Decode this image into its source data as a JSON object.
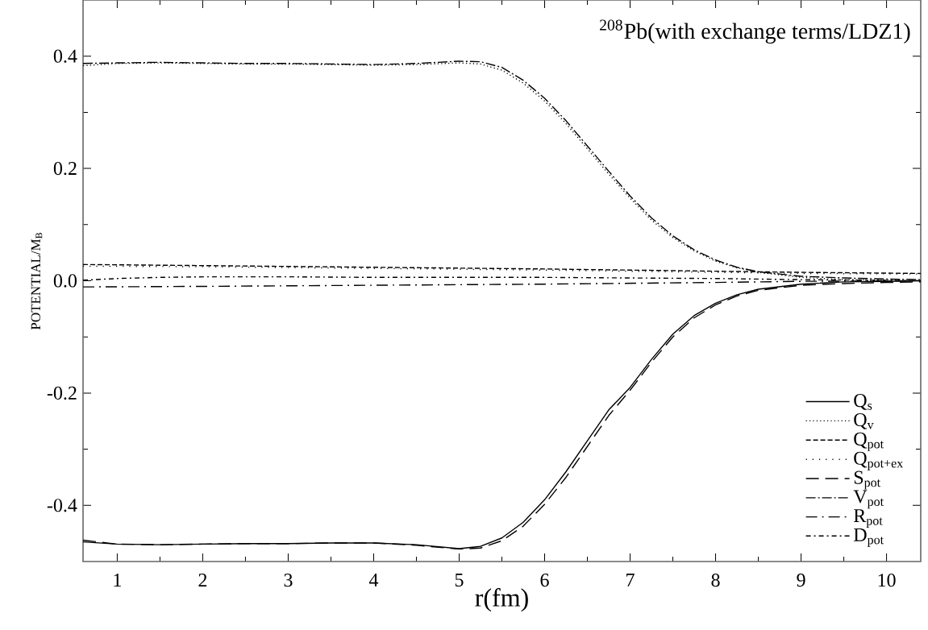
{
  "chart_data": {
    "type": "line",
    "xlabel": "r(fm)",
    "ylabel": "POTENTIAL/M$_{B}$",
    "annotations": [
      "$^{208}$Pb(with exchange terms/LDZ1)"
    ],
    "xlim": [
      0.6,
      10.4
    ],
    "ylim": [
      -0.5,
      0.5
    ],
    "xticks": [
      1,
      2,
      3,
      4,
      5,
      6,
      7,
      8,
      9,
      10
    ],
    "yticks": [
      -0.4,
      -0.2,
      {
        "value": 0,
        "label": "0.0"
      },
      0.2,
      0.4
    ],
    "grid": false,
    "legend": "bottom right",
    "marker": "none",
    "x": [
      0.6,
      1,
      1.5,
      2,
      2.5,
      3,
      3.5,
      4,
      4.5,
      5,
      5.25,
      5.5,
      5.75,
      6,
      6.25,
      6.5,
      6.75,
      7,
      7.25,
      7.5,
      7.75,
      8,
      8.25,
      8.5,
      9,
      9.5,
      10,
      10.4
    ],
    "series": [
      {
        "name": "Q$_{s}$",
        "color": "#000000",
        "line_style": "solid",
        "values": [
          -0.465,
          -0.469,
          -0.47,
          -0.469,
          -0.468,
          -0.468,
          -0.467,
          -0.467,
          -0.47,
          -0.477,
          -0.473,
          -0.458,
          -0.43,
          -0.39,
          -0.34,
          -0.285,
          -0.23,
          -0.19,
          -0.14,
          -0.095,
          -0.062,
          -0.04,
          -0.025,
          -0.015,
          -0.006,
          -0.002,
          -0.001,
          0.0
        ]
      },
      {
        "name": "Q$_{v}$",
        "color": "#000000",
        "line_style": "dotted",
        "values": [
          0.383,
          0.387,
          0.388,
          0.387,
          0.386,
          0.386,
          0.385,
          0.384,
          0.385,
          0.388,
          0.386,
          0.375,
          0.352,
          0.32,
          0.28,
          0.235,
          0.19,
          0.147,
          0.108,
          0.077,
          0.053,
          0.035,
          0.023,
          0.015,
          0.006,
          0.002,
          0.001,
          0.0
        ]
      },
      {
        "name": "Q$_{pot}$",
        "color": "#000000",
        "line_style": "dashed",
        "x": [
          0.6,
          2,
          4,
          6,
          8,
          9,
          10.4
        ],
        "values": [
          0.029,
          0.027,
          0.024,
          0.021,
          0.017,
          0.015,
          0.013
        ]
      },
      {
        "name": "Q$_{pot+ex}$",
        "color": "#000000",
        "line_style": "loosely dotted",
        "x": [
          0.6,
          2,
          4,
          6,
          8,
          9,
          10.4
        ],
        "values": [
          0.026,
          0.025,
          0.022,
          0.019,
          0.015,
          0.013,
          0.012
        ]
      },
      {
        "name": "S$_{pot}$",
        "color": "#000000",
        "line_style": "long dashed",
        "values": [
          -0.462,
          -0.469,
          -0.47,
          -0.469,
          -0.468,
          -0.468,
          -0.467,
          -0.467,
          -0.471,
          -0.478,
          -0.476,
          -0.463,
          -0.437,
          -0.398,
          -0.35,
          -0.295,
          -0.24,
          -0.195,
          -0.145,
          -0.1,
          -0.066,
          -0.043,
          -0.027,
          -0.017,
          -0.008,
          -0.005,
          -0.003,
          -0.002
        ]
      },
      {
        "name": "V$_{pot}$",
        "color": "#000000",
        "line_style": "dash dot",
        "values": [
          0.387,
          0.388,
          0.389,
          0.388,
          0.387,
          0.387,
          0.386,
          0.385,
          0.387,
          0.391,
          0.39,
          0.38,
          0.357,
          0.325,
          0.285,
          0.24,
          0.195,
          0.151,
          0.112,
          0.08,
          0.055,
          0.037,
          0.024,
          0.016,
          0.008,
          0.005,
          0.003,
          0.002
        ]
      },
      {
        "name": "R$_{pot}$",
        "color": "#000000",
        "line_style": "long dash dot",
        "x": [
          0.6,
          2,
          4,
          6,
          8,
          9,
          10.4
        ],
        "values": [
          -0.011,
          -0.01,
          -0.008,
          -0.006,
          -0.003,
          -0.001,
          0.0
        ]
      },
      {
        "name": "D$_{pot}$",
        "color": "#000000",
        "line_style": "dash dot dot",
        "x": [
          0.6,
          1,
          1.5,
          2,
          3,
          4,
          6,
          8,
          9,
          10.4
        ],
        "values": [
          0.001,
          0.004,
          0.006,
          0.007,
          0.007,
          0.006,
          0.006,
          0.004,
          0.002,
          0.0
        ]
      }
    ]
  }
}
